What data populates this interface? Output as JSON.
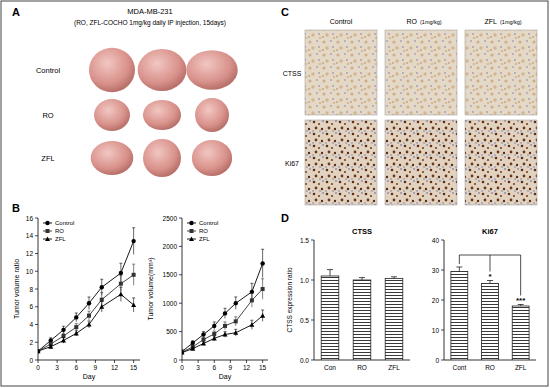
{
  "panels": {
    "A": {
      "label": "A",
      "title": "MDA-MB-231",
      "subtitle": "(RO, ZFL-COCHO 1mg/kg daily IP injection, 15days)",
      "rows": [
        "Control",
        "RO",
        "ZFL"
      ]
    },
    "B": {
      "label": "B"
    },
    "C": {
      "label": "C",
      "columns": [
        {
          "name": "Control"
        },
        {
          "name": "RO",
          "note": "(1mg/kg)"
        },
        {
          "name": "ZFL",
          "note": "(1mg/kg)"
        }
      ],
      "rows": [
        "CTSS",
        "Ki67"
      ]
    },
    "D": {
      "label": "D"
    }
  },
  "chart_data": [
    {
      "type": "line",
      "x_label": "Day",
      "y_label": "Tumor volume ratio",
      "x": [
        0,
        2,
        4,
        6,
        8,
        10,
        13,
        15
      ],
      "xlim": [
        0,
        16
      ],
      "xticks": [
        0,
        3,
        6,
        9,
        12,
        15
      ],
      "ylim": [
        0,
        16
      ],
      "yticks": [
        0,
        2,
        4,
        6,
        8,
        10,
        12,
        14,
        16
      ],
      "legend": "upper left",
      "series": [
        {
          "name": "Control",
          "color": "#000000",
          "marker": "circle",
          "values": [
            1,
            2.2,
            3.4,
            4.8,
            6.4,
            8.2,
            9.8,
            13.4
          ],
          "errors": [
            0,
            0.3,
            0.4,
            0.5,
            0.7,
            0.9,
            1.1,
            1.5
          ]
        },
        {
          "name": "RO",
          "color": "#333333",
          "marker": "square",
          "values": [
            1,
            1.8,
            2.7,
            3.7,
            5,
            6.8,
            8.6,
            9.6
          ],
          "errors": [
            0,
            0.2,
            0.3,
            0.4,
            0.5,
            0.8,
            0.9,
            1.2
          ]
        },
        {
          "name": "ZFL",
          "color": "#000000",
          "marker": "triangle",
          "values": [
            1,
            1.5,
            2.2,
            3,
            4,
            6,
            7.4,
            6.2
          ],
          "errors": [
            0,
            0.2,
            0.3,
            0.3,
            0.4,
            0.6,
            0.8,
            0.8
          ]
        }
      ]
    },
    {
      "type": "line",
      "x_label": "Day",
      "y_label": "Tumor volume(mm³)",
      "x": [
        0,
        2,
        4,
        6,
        8,
        10,
        13,
        15
      ],
      "xlim": [
        0,
        16
      ],
      "xticks": [
        0,
        3,
        6,
        9,
        12,
        15
      ],
      "ylim": [
        0,
        2500
      ],
      "yticks": [
        0,
        500,
        1000,
        1500,
        2000,
        2500
      ],
      "legend": "upper left",
      "series": [
        {
          "name": "Control",
          "color": "#000000",
          "marker": "circle",
          "values": [
            150,
            300,
            450,
            600,
            820,
            1000,
            1200,
            1700
          ],
          "errors": [
            20,
            40,
            50,
            70,
            90,
            110,
            150,
            250
          ]
        },
        {
          "name": "RO",
          "color": "#333333",
          "marker": "square",
          "values": [
            140,
            230,
            360,
            460,
            600,
            680,
            1050,
            1250
          ],
          "errors": [
            20,
            30,
            40,
            50,
            70,
            80,
            120,
            180
          ]
        },
        {
          "name": "ZFL",
          "color": "#000000",
          "marker": "triangle",
          "values": [
            130,
            200,
            290,
            380,
            450,
            480,
            620,
            780
          ],
          "errors": [
            20,
            30,
            30,
            40,
            50,
            60,
            80,
            100
          ]
        }
      ]
    },
    {
      "type": "bar",
      "title": "CTSS",
      "y_label": "CTSS expression ratio",
      "categories": [
        "Con",
        "RO",
        "ZFL"
      ],
      "values": [
        1.05,
        1.0,
        1.02
      ],
      "errors": [
        0.08,
        0.03,
        0.02
      ],
      "color": "#222222",
      "ylim": [
        0,
        1.5
      ],
      "yticks": [
        {
          "value": 0,
          "label": "0.0"
        },
        {
          "value": 0.5,
          "label": "0.5"
        },
        {
          "value": 1,
          "label": "1.0"
        },
        {
          "value": 1.5,
          "label": "1.5"
        }
      ]
    },
    {
      "type": "bar",
      "title": "Ki67",
      "categories": [
        "Cont",
        "RO",
        "ZFL"
      ],
      "values": [
        29.5,
        25.5,
        18
      ],
      "errors": [
        1.5,
        1,
        0.5
      ],
      "color": "#222222",
      "ylim": [
        0,
        40
      ],
      "yticks": [
        0,
        10,
        20,
        30,
        40
      ],
      "annotations": [
        {
          "text": "*",
          "category": 1
        },
        {
          "text": "***",
          "category": 2
        }
      ]
    }
  ]
}
